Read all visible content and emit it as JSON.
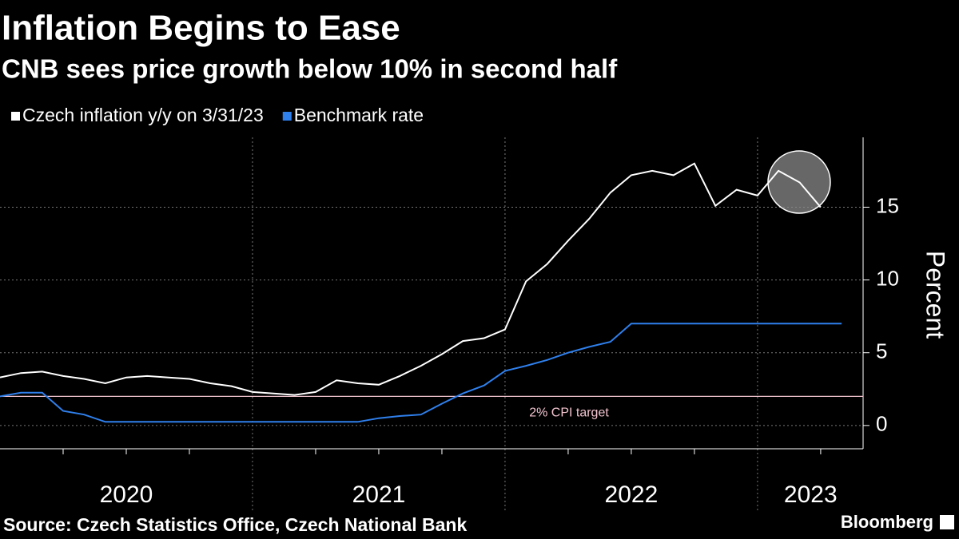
{
  "chart_data": {
    "type": "line",
    "title": "Inflation Begins to Ease",
    "subtitle": "CNB sees price growth below 10% in second half",
    "y_label": "Percent",
    "source": "Source: Czech Statistics Office, Czech National Bank",
    "brand": "Bloomberg",
    "x": [
      2020,
      2020.083,
      2020.167,
      2020.25,
      2020.333,
      2020.417,
      2020.5,
      2020.583,
      2020.667,
      2020.75,
      2020.833,
      2020.917,
      2021,
      2021.083,
      2021.167,
      2021.25,
      2021.333,
      2021.417,
      2021.5,
      2021.583,
      2021.667,
      2021.75,
      2021.833,
      2021.917,
      2022,
      2022.083,
      2022.167,
      2022.25,
      2022.333,
      2022.417,
      2022.5,
      2022.583,
      2022.667,
      2022.75,
      2022.833,
      2022.917,
      2023,
      2023.083,
      2023.167,
      2023.25,
      2023.333
    ],
    "series": [
      {
        "name": "Czech inflation y/y on 3/31/23",
        "color": "#ffffff",
        "values": [
          3.3,
          3.6,
          3.7,
          3.4,
          3.2,
          2.9,
          3.3,
          3.4,
          3.3,
          3.2,
          2.9,
          2.7,
          2.3,
          2.2,
          2.1,
          2.3,
          3.1,
          2.9,
          2.8,
          3.4,
          4.1,
          4.9,
          5.8,
          6.0,
          6.6,
          9.9,
          11.1,
          12.7,
          14.2,
          16.0,
          17.2,
          17.5,
          17.2,
          18.0,
          15.1,
          16.2,
          15.8,
          17.5,
          16.7,
          15.0,
          null
        ]
      },
      {
        "name": "Benchmark rate",
        "color": "#2f80ed",
        "values": [
          2.0,
          2.25,
          2.25,
          1.0,
          0.75,
          0.25,
          0.25,
          0.25,
          0.25,
          0.25,
          0.25,
          0.25,
          0.25,
          0.25,
          0.25,
          0.25,
          0.25,
          0.25,
          0.5,
          0.65,
          0.75,
          1.5,
          2.2,
          2.75,
          3.75,
          4.1,
          4.5,
          5.0,
          5.4,
          5.75,
          7.0,
          7.0,
          7.0,
          7.0,
          7.0,
          7.0,
          7.0,
          7.0,
          7.0,
          7.0,
          7.0
        ]
      }
    ],
    "reference_line": {
      "value": 2,
      "label": "2% CPI target",
      "color": "#f2c4cf"
    },
    "xlim": [
      2020,
      2023.418
    ],
    "xticks": [
      {
        "value": 2020.5,
        "label": "2020"
      },
      {
        "value": 2021.5,
        "label": "2021"
      },
      {
        "value": 2022.5,
        "label": "2022"
      },
      {
        "value": 2023.21,
        "label": "2023"
      }
    ],
    "xgrid": [
      2021,
      2022,
      2023
    ],
    "xminor_ticks": [
      2020.25,
      2020.5,
      2020.75,
      2021.25,
      2021.5,
      2021.75,
      2022.25,
      2022.5,
      2022.75,
      2023.25
    ],
    "ylim": [
      -1.6,
      19.8
    ],
    "yticks": [
      0,
      5,
      10,
      15
    ],
    "grid": true
  }
}
